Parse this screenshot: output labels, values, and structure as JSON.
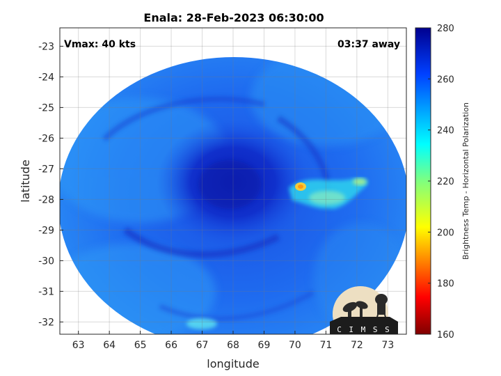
{
  "title": "Enala: 28-Feb-2023 06:30:00",
  "vmax_label": "Vmax: 40 kts",
  "time_label": "03:37 away",
  "map": {
    "xlabel": "longitude",
    "ylabel": "latitude",
    "xlim": [
      62.4,
      73.6
    ],
    "ylim": [
      -32.4,
      -22.4
    ],
    "x_ticks": [
      63,
      64,
      65,
      66,
      67,
      68,
      69,
      70,
      71,
      72,
      73
    ],
    "y_ticks": [
      -23,
      -24,
      -25,
      -26,
      -27,
      -28,
      -29,
      -30,
      -31,
      -32
    ],
    "grid": true
  },
  "colorbar": {
    "label": "Brightness Temp - Horizontal Polarization",
    "min": 160,
    "max": 280,
    "ticks": [
      160,
      180,
      200,
      220,
      240,
      260,
      280
    ],
    "colormap": "jet"
  },
  "logo_text": "C I M S S"
}
